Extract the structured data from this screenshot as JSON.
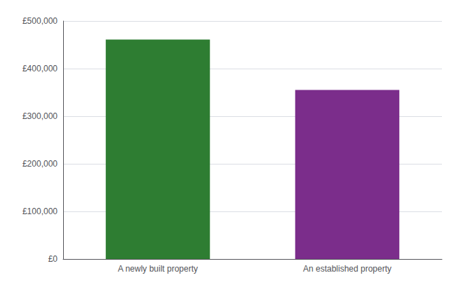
{
  "chart_data": {
    "type": "bar",
    "categories": [
      "A newly built property",
      "An established property"
    ],
    "values": [
      461000,
      355000
    ],
    "colors": [
      "#2e7d32",
      "#7b2d8b"
    ],
    "ylim": [
      0,
      500000
    ],
    "yticks": [
      {
        "value": 0,
        "label": "£0"
      },
      {
        "value": 100000,
        "label": "£100,000"
      },
      {
        "value": 200000,
        "label": "£200,000"
      },
      {
        "value": 300000,
        "label": "£300,000"
      },
      {
        "value": 400000,
        "label": "£400,000"
      },
      {
        "value": 500000,
        "label": "£500,000"
      }
    ],
    "grid": true
  }
}
